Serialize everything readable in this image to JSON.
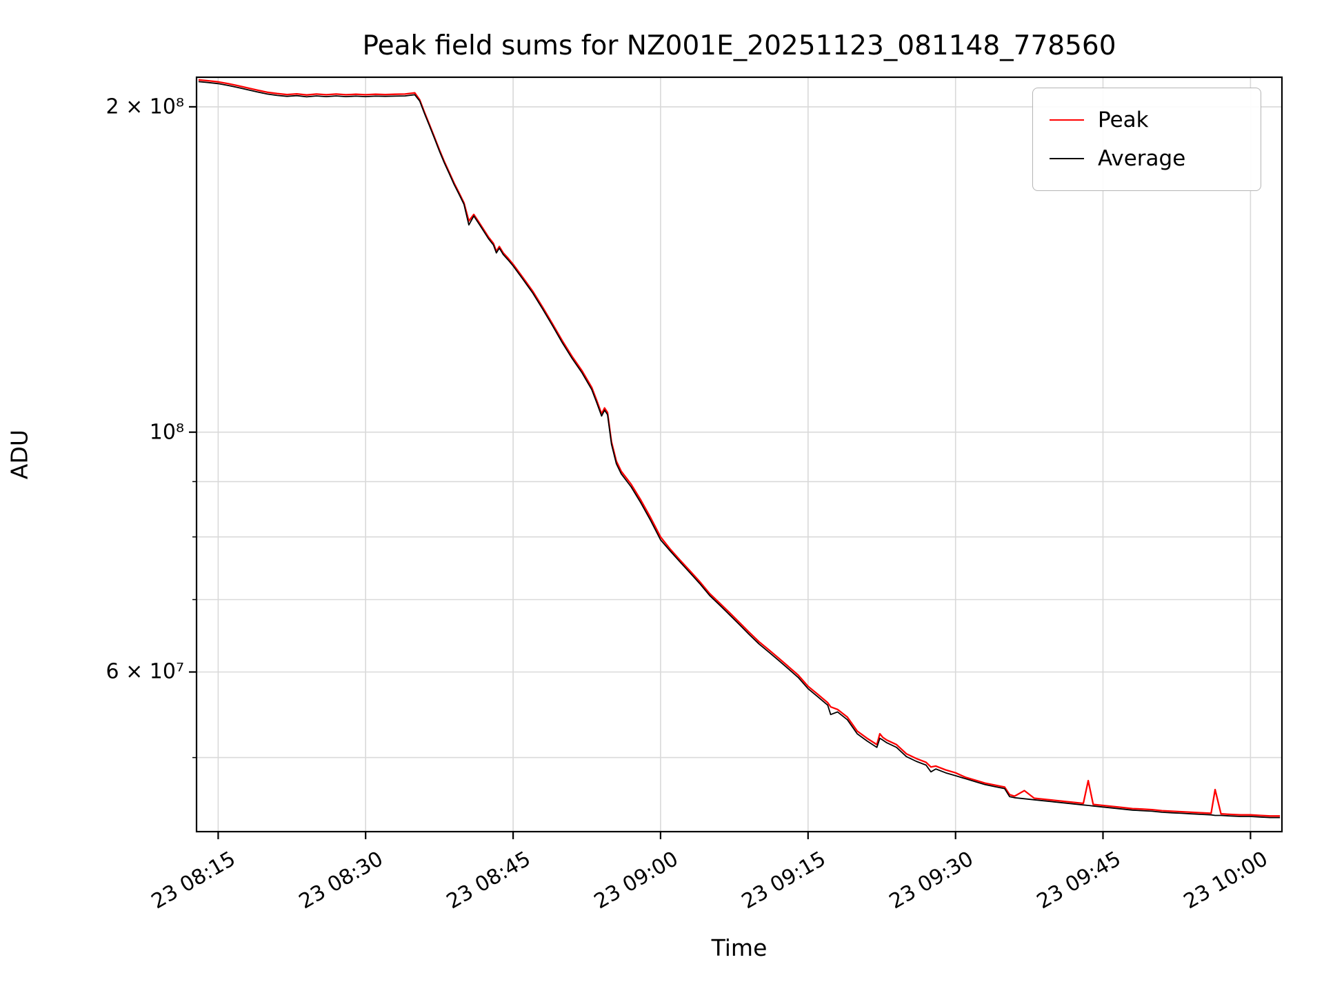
{
  "chart_data": {
    "type": "line",
    "title": "Peak field sums for NZ001E_20251123_081148_778560",
    "xlabel": "Time",
    "ylabel": "ADU",
    "y_scale": "log",
    "grid": true,
    "ylim": [
      42700000,
      213000000
    ],
    "x_axis": {
      "start_minute": 12.8,
      "end_minute": 123.2,
      "tick_minutes": [
        15,
        30,
        45,
        60,
        75,
        90,
        105,
        120
      ],
      "tick_labels": [
        "23 08:15",
        "23 08:30",
        "23 08:45",
        "23 09:00",
        "23 09:15",
        "23 09:30",
        "23 09:45",
        "23 10:00"
      ]
    },
    "y_ticks": [
      {
        "value": 200000000,
        "label": "2 × 10⁸",
        "major": true
      },
      {
        "value": 100000000,
        "label": "10⁸",
        "major": true
      },
      {
        "value": 90000000,
        "label": "",
        "major": false
      },
      {
        "value": 80000000,
        "label": "",
        "major": false
      },
      {
        "value": 70000000,
        "label": "",
        "major": false
      },
      {
        "value": 60000000,
        "label": "6 × 10⁷",
        "major": true
      },
      {
        "value": 50000000,
        "label": "",
        "major": false
      }
    ],
    "value_unit_multiplier": 1000000,
    "x_minutes": [
      13,
      14,
      15,
      16,
      17,
      18,
      19,
      20,
      21,
      22,
      23,
      24,
      25,
      26,
      27,
      28,
      29,
      30,
      31,
      32,
      33,
      34,
      35,
      35.5,
      36,
      36.5,
      37,
      37.5,
      38,
      38.5,
      39,
      39.5,
      40,
      40.5,
      41,
      41.5,
      42,
      42.5,
      43,
      43.3,
      43.6,
      44,
      44.5,
      45,
      46,
      47,
      48,
      49,
      50,
      51,
      52,
      53,
      53.5,
      54,
      54.3,
      54.6,
      55,
      55.5,
      56,
      57,
      58,
      59,
      60,
      61,
      62,
      63,
      64,
      65,
      66,
      67,
      68,
      69,
      70,
      71,
      72,
      73,
      74,
      75,
      76,
      77,
      77.3,
      78,
      79,
      80,
      81,
      82,
      82.3,
      82.6,
      83,
      84,
      85,
      86,
      87,
      87.5,
      88,
      89,
      90,
      91,
      92,
      93,
      94,
      95,
      95.5,
      96,
      97,
      98,
      99,
      100,
      101,
      102,
      103,
      103.5,
      104,
      105,
      106,
      107,
      108,
      109,
      110,
      111,
      112,
      113,
      114,
      115,
      116,
      116.4,
      117,
      118,
      119,
      120,
      121,
      122,
      123
    ],
    "series": [
      {
        "name": "Peak",
        "color": "#ff0000",
        "values": [
          211.8,
          211.4,
          210.9,
          210.1,
          209.2,
          208.2,
          207.2,
          206.3,
          205.7,
          205.3,
          205.6,
          205.1,
          205.5,
          205.2,
          205.5,
          205.2,
          205.4,
          205.2,
          205.4,
          205.3,
          205.4,
          205.5,
          206.0,
          203.0,
          197.5,
          192.5,
          187.5,
          182.5,
          178.0,
          174.0,
          170.0,
          166.5,
          163.0,
          156.8,
          159.0,
          156.5,
          154.0,
          151.5,
          149.5,
          147.0,
          148.5,
          146.5,
          144.8,
          143.0,
          139.0,
          135.0,
          130.5,
          126.0,
          121.5,
          117.5,
          114.0,
          110.0,
          107.0,
          104.0,
          105.3,
          104.3,
          98.0,
          94.0,
          92.0,
          89.5,
          86.5,
          83.3,
          80.0,
          77.9,
          76.1,
          74.4,
          72.7,
          70.9,
          69.5,
          68.1,
          66.7,
          65.3,
          64.0,
          62.9,
          61.8,
          60.7,
          59.6,
          58.2,
          57.2,
          56.2,
          55.7,
          55.4,
          54.5,
          52.9,
          52.1,
          51.4,
          52.6,
          52.2,
          51.9,
          51.4,
          50.4,
          49.9,
          49.5,
          49.0,
          49.1,
          48.7,
          48.4,
          47.95,
          47.65,
          47.35,
          47.15,
          46.95,
          46.2,
          46.05,
          46.6,
          45.85,
          45.75,
          45.65,
          45.55,
          45.45,
          45.35,
          47.6,
          45.25,
          45.15,
          45.05,
          44.95,
          44.85,
          44.8,
          44.75,
          44.65,
          44.6,
          44.55,
          44.5,
          44.45,
          44.4,
          46.7,
          44.35,
          44.3,
          44.25,
          44.25,
          44.2,
          44.15,
          44.15
        ]
      },
      {
        "name": "Average",
        "color": "#000000",
        "values": [
          211.0,
          210.6,
          210.1,
          209.3,
          208.4,
          207.4,
          206.4,
          205.5,
          204.9,
          204.5,
          204.8,
          204.3,
          204.7,
          204.4,
          204.7,
          204.4,
          204.6,
          204.4,
          204.6,
          204.5,
          204.6,
          204.7,
          205.2,
          202.5,
          197.0,
          192.0,
          187.0,
          182.0,
          177.5,
          173.5,
          169.5,
          166.0,
          162.5,
          155.5,
          158.5,
          156.0,
          153.5,
          151.0,
          149.0,
          146.5,
          148.0,
          146.0,
          144.3,
          142.5,
          138.5,
          134.5,
          130.0,
          125.5,
          121.0,
          117.0,
          113.5,
          109.5,
          106.5,
          103.5,
          104.8,
          103.8,
          97.5,
          93.5,
          91.5,
          89.0,
          86.0,
          82.8,
          79.5,
          77.6,
          75.8,
          74.1,
          72.4,
          70.6,
          69.2,
          67.8,
          66.4,
          65.0,
          63.7,
          62.6,
          61.5,
          60.4,
          59.3,
          57.9,
          56.9,
          55.9,
          54.8,
          55.1,
          54.2,
          52.6,
          51.8,
          51.1,
          52.1,
          51.9,
          51.6,
          51.1,
          50.1,
          49.6,
          49.2,
          48.5,
          48.8,
          48.4,
          48.1,
          47.8,
          47.5,
          47.2,
          47.0,
          46.8,
          46.0,
          45.9,
          45.8,
          45.7,
          45.6,
          45.5,
          45.4,
          45.3,
          45.2,
          45.15,
          45.1,
          45.0,
          44.9,
          44.8,
          44.7,
          44.65,
          44.6,
          44.5,
          44.45,
          44.4,
          44.35,
          44.3,
          44.25,
          44.2,
          44.2,
          44.15,
          44.1,
          44.1,
          44.05,
          44.0,
          44.0
        ]
      }
    ],
    "legend": {
      "position": "upper right"
    }
  },
  "style": {
    "grid_color": "#d9d9d9",
    "spine_color": "#000000",
    "peak_color": "#ff0000",
    "average_color": "#000000"
  }
}
